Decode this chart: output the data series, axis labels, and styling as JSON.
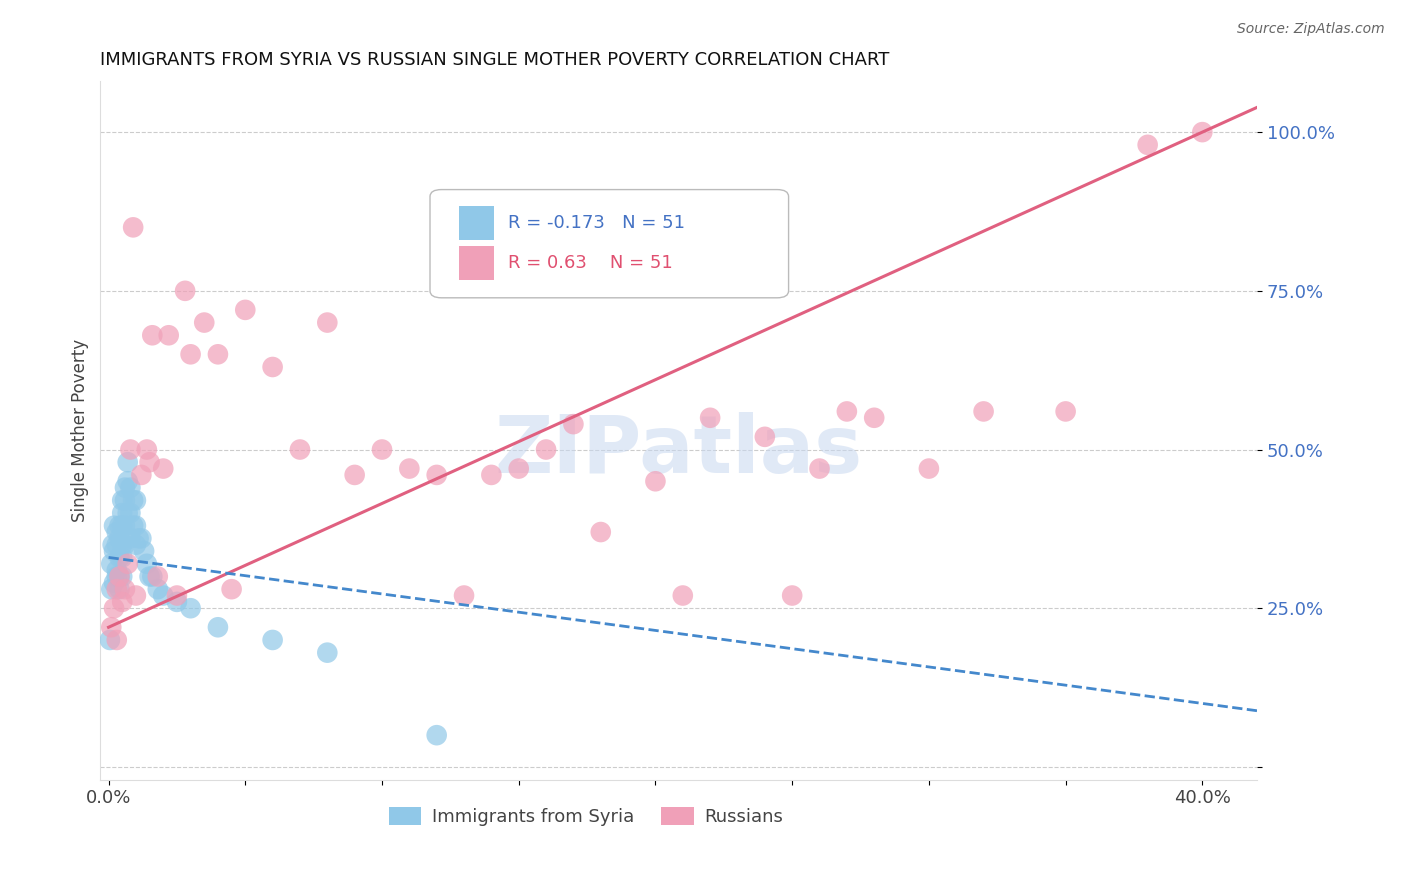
{
  "title": "IMMIGRANTS FROM SYRIA VS RUSSIAN SINGLE MOTHER POVERTY CORRELATION CHART",
  "source": "Source: ZipAtlas.com",
  "ylabel": "Single Mother Poverty",
  "xlim": [
    -0.003,
    0.42
  ],
  "ylim": [
    -0.02,
    1.08
  ],
  "r_syria": -0.173,
  "r_russia": 0.63,
  "n_syria": 51,
  "n_russia": 51,
  "color_syria": "#90C8E8",
  "color_russia": "#F0A0B8",
  "line_color_syria": "#4488CC",
  "line_color_russia": "#E06080",
  "watermark": "ZIPatlas",
  "watermark_color": "#C8D8F0",
  "syria_x": [
    0.0005,
    0.001,
    0.001,
    0.0015,
    0.002,
    0.002,
    0.002,
    0.003,
    0.003,
    0.003,
    0.003,
    0.004,
    0.004,
    0.004,
    0.004,
    0.004,
    0.005,
    0.005,
    0.005,
    0.005,
    0.005,
    0.005,
    0.006,
    0.006,
    0.006,
    0.006,
    0.007,
    0.007,
    0.007,
    0.008,
    0.008,
    0.008,
    0.009,
    0.009,
    0.01,
    0.01,
    0.01,
    0.011,
    0.012,
    0.013,
    0.014,
    0.015,
    0.016,
    0.018,
    0.02,
    0.025,
    0.03,
    0.04,
    0.06,
    0.08,
    0.12
  ],
  "syria_y": [
    0.2,
    0.32,
    0.28,
    0.35,
    0.38,
    0.34,
    0.29,
    0.37,
    0.35,
    0.31,
    0.3,
    0.38,
    0.36,
    0.33,
    0.3,
    0.28,
    0.42,
    0.4,
    0.38,
    0.35,
    0.33,
    0.3,
    0.44,
    0.42,
    0.38,
    0.35,
    0.48,
    0.45,
    0.4,
    0.44,
    0.4,
    0.36,
    0.42,
    0.38,
    0.42,
    0.38,
    0.35,
    0.36,
    0.36,
    0.34,
    0.32,
    0.3,
    0.3,
    0.28,
    0.27,
    0.26,
    0.25,
    0.22,
    0.2,
    0.18,
    0.05
  ],
  "russia_x": [
    0.001,
    0.002,
    0.003,
    0.003,
    0.004,
    0.005,
    0.006,
    0.007,
    0.008,
    0.009,
    0.01,
    0.012,
    0.014,
    0.015,
    0.016,
    0.018,
    0.02,
    0.022,
    0.025,
    0.028,
    0.03,
    0.035,
    0.04,
    0.045,
    0.05,
    0.06,
    0.07,
    0.08,
    0.09,
    0.1,
    0.11,
    0.12,
    0.13,
    0.14,
    0.15,
    0.16,
    0.17,
    0.18,
    0.2,
    0.21,
    0.22,
    0.24,
    0.25,
    0.26,
    0.27,
    0.28,
    0.3,
    0.32,
    0.35,
    0.38,
    0.4
  ],
  "russia_y": [
    0.22,
    0.25,
    0.2,
    0.28,
    0.3,
    0.26,
    0.28,
    0.32,
    0.5,
    0.85,
    0.27,
    0.46,
    0.5,
    0.48,
    0.68,
    0.3,
    0.47,
    0.68,
    0.27,
    0.75,
    0.65,
    0.7,
    0.65,
    0.28,
    0.72,
    0.63,
    0.5,
    0.7,
    0.46,
    0.5,
    0.47,
    0.46,
    0.27,
    0.46,
    0.47,
    0.5,
    0.54,
    0.37,
    0.45,
    0.27,
    0.55,
    0.52,
    0.27,
    0.47,
    0.56,
    0.55,
    0.47,
    0.56,
    0.56,
    0.98,
    1.0
  ]
}
